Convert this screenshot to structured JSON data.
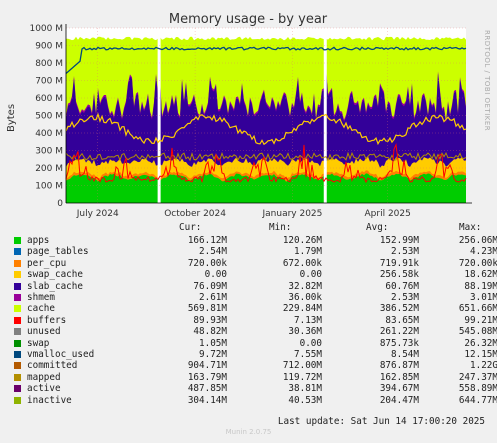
{
  "chart_data": {
    "type": "area",
    "title": "Memory usage - by year",
    "ylabel": "Bytes",
    "ylim": [
      0,
      1000000000
    ],
    "y_ticks": [
      {
        "v": 0,
        "label": "0"
      },
      {
        "v": 100000000,
        "label": "100 M"
      },
      {
        "v": 200000000,
        "label": "200 M"
      },
      {
        "v": 300000000,
        "label": "300 M"
      },
      {
        "v": 400000000,
        "label": "400 M"
      },
      {
        "v": 500000000,
        "label": "500 M"
      },
      {
        "v": 600000000,
        "label": "600 M"
      },
      {
        "v": 700000000,
        "label": "700 M"
      },
      {
        "v": 800000000,
        "label": "800 M"
      },
      {
        "v": 900000000,
        "label": "900 M"
      },
      {
        "v": 1000000000,
        "label": "1000 M"
      }
    ],
    "x_ticks": [
      "July 2024",
      "October 2024",
      "January 2025",
      "April 2025"
    ],
    "x_range": [
      "2024-06-01",
      "2025-06-14"
    ],
    "x_tick_dates": [
      "2024-07-01",
      "2024-10-01",
      "2025-01-01",
      "2025-04-01"
    ],
    "data_gaps": [
      "2024-08-28",
      "2025-02-01"
    ],
    "side_label": "RRDTOOL / TOBI OETIKER",
    "series": [
      {
        "name": "apps",
        "color": "#00cc00",
        "kind": "stack",
        "cur": "166.12M",
        "min": "120.26M",
        "avg": "152.99M",
        "max": "256.06M"
      },
      {
        "name": "page_tables",
        "color": "#0066b3",
        "kind": "stack",
        "cur": "2.54M",
        "min": "1.79M",
        "avg": "2.53M",
        "max": "4.23M"
      },
      {
        "name": "per_cpu",
        "color": "#ff8000",
        "kind": "stack",
        "cur": "720.00k",
        "min": "672.00k",
        "avg": "719.91k",
        "max": "720.00k"
      },
      {
        "name": "swap_cache",
        "color": "#ffcc00",
        "kind": "stack",
        "cur": "0.00",
        "min": "0.00",
        "avg": "256.58k",
        "max": "18.62M"
      },
      {
        "name": "slab_cache",
        "color": "#330099",
        "kind": "stack",
        "cur": "76.09M",
        "min": "32.82M",
        "avg": "60.76M",
        "max": "88.19M"
      },
      {
        "name": "shmem",
        "color": "#990099",
        "kind": "stack",
        "cur": "2.61M",
        "min": "36.00k",
        "avg": "2.53M",
        "max": "3.01M"
      },
      {
        "name": "cache",
        "color": "#ccff00",
        "kind": "stack",
        "cur": "569.81M",
        "min": "229.84M",
        "avg": "386.52M",
        "max": "651.66M"
      },
      {
        "name": "buffers",
        "color": "#ff0000",
        "kind": "stack",
        "cur": "89.93M",
        "min": "7.13M",
        "avg": "83.65M",
        "max": "99.21M"
      },
      {
        "name": "unused",
        "color": "#808080",
        "kind": "stack",
        "cur": "48.82M",
        "min": "30.36M",
        "avg": "261.22M",
        "max": "545.08M"
      },
      {
        "name": "swap",
        "color": "#008f00",
        "kind": "stack",
        "cur": "1.05M",
        "min": "0.00",
        "avg": "875.73k",
        "max": "26.32M"
      },
      {
        "name": "vmalloc_used",
        "color": "#00487d",
        "kind": "line",
        "cur": "9.72M",
        "min": "7.55M",
        "avg": "8.54M",
        "max": "12.15M"
      },
      {
        "name": "committed",
        "color": "#b35a00",
        "kind": "line",
        "cur": "904.71M",
        "min": "712.00M",
        "avg": "876.87M",
        "max": "1.22G"
      },
      {
        "name": "mapped",
        "color": "#b38f00",
        "kind": "line",
        "cur": "163.79M",
        "min": "119.72M",
        "avg": "162.85M",
        "max": "247.37M"
      },
      {
        "name": "active",
        "color": "#6b006b",
        "kind": "line",
        "cur": "487.85M",
        "min": "38.81M",
        "avg": "394.67M",
        "max": "558.89M"
      },
      {
        "name": "inactive",
        "color": "#8fb300",
        "kind": "line",
        "cur": "304.14M",
        "min": "40.53M",
        "avg": "204.47M",
        "max": "644.77M"
      }
    ],
    "legend_swatches": [
      "#00cc00",
      "#0066b3",
      "#ff8000",
      "#ffcc00",
      "#330099",
      "#990099",
      "#ccff00",
      "#ff0000",
      "#808080",
      "#008f00",
      "#00487d",
      "#b35a00",
      "#b38f00",
      "#6b006b",
      "#8fb300"
    ],
    "line_colors": [
      "#ffcc00",
      "#00487d",
      "#b38f00",
      "#b35a00",
      "#ff0000"
    ]
  },
  "legend_header": {
    "cur": "Cur:",
    "min": "Min:",
    "avg": "Avg:",
    "max": "Max:"
  },
  "footer": {
    "last_update": "Last update: Sat Jun 14 17:00:20 2025",
    "munin": "Munin 2.0.75"
  }
}
